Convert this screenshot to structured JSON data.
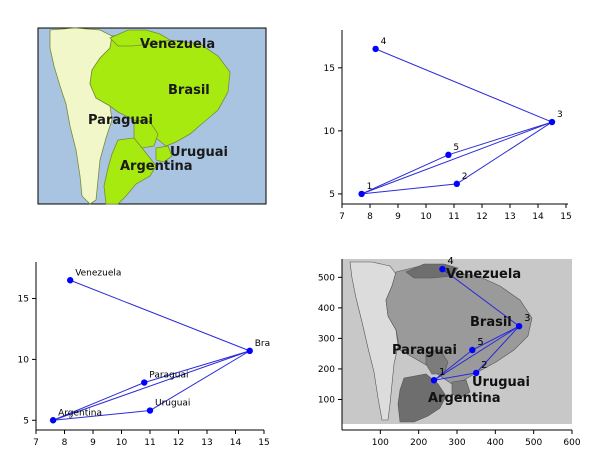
{
  "panels": {
    "map_top_left": {
      "labels": [
        "Venezuela",
        "Brasil",
        "Paraguai",
        "Uruguai",
        "Argentina"
      ],
      "colors": {
        "ocean": "#a9c4e0",
        "highlight": "#a6ea10",
        "other_land": "#f2f7c9",
        "border": "#7a8a3a"
      }
    },
    "graph_numbered": {
      "point_labels": [
        "1",
        "2",
        "3",
        "4",
        "5"
      ]
    },
    "graph_named": {
      "point_labels": [
        "Argentina",
        "Uruguai",
        "Bra",
        "Venezuela",
        "Paraguai"
      ]
    },
    "map_graph_gray": {
      "country_labels": [
        "Venezuela",
        "Brasil",
        "Paraguai",
        "Uruguai",
        "Argentina"
      ],
      "point_labels": [
        "1",
        "2",
        "3",
        "4",
        "5"
      ],
      "colors": {
        "ocean": "#c8c8c8",
        "south_america": "#9a9a9a",
        "highlight_land": "#6e6e6e",
        "light_land": "#dcdcdc"
      }
    }
  },
  "chart_data": [
    {
      "type": "scatter",
      "panel": "top-right",
      "x": [
        7.7,
        11.1,
        14.5,
        8.2,
        10.8
      ],
      "y": [
        5.0,
        5.8,
        10.7,
        16.5,
        8.1
      ],
      "labels": [
        "1",
        "2",
        "3",
        "4",
        "5"
      ],
      "edges": [
        [
          4,
          3
        ],
        [
          1,
          3
        ],
        [
          1,
          5
        ],
        [
          5,
          3
        ],
        [
          1,
          2
        ],
        [
          2,
          3
        ]
      ],
      "xlim": [
        7,
        15
      ],
      "ylim": [
        4.2,
        18
      ],
      "xticks": [
        7,
        8,
        9,
        10,
        11,
        12,
        13,
        14,
        15
      ],
      "yticks": [
        5,
        10,
        15
      ],
      "grid": false,
      "point_color": "#0000ff",
      "line_color": "#2b2bd9"
    },
    {
      "type": "scatter",
      "panel": "bottom-left",
      "x": [
        7.6,
        11.0,
        14.5,
        8.2,
        10.8
      ],
      "y": [
        5.0,
        5.8,
        10.7,
        16.5,
        8.1
      ],
      "labels": [
        "Argentina",
        "Uruguai",
        "Bra",
        "Venezuela",
        "Paraguai"
      ],
      "edges": [
        [
          4,
          3
        ],
        [
          1,
          3
        ],
        [
          1,
          5
        ],
        [
          5,
          3
        ],
        [
          1,
          2
        ],
        [
          2,
          3
        ]
      ],
      "xlim": [
        7,
        15
      ],
      "ylim": [
        4.2,
        18
      ],
      "xticks": [
        7,
        8,
        9,
        10,
        11,
        12,
        13,
        14,
        15
      ],
      "yticks": [
        5,
        10,
        15
      ],
      "grid": false,
      "point_color": "#0000ff",
      "line_color": "#2b2bd9"
    },
    {
      "type": "scatter",
      "panel": "bottom-right",
      "x": [
        240,
        350,
        462,
        262,
        340
      ],
      "y": [
        163,
        187,
        340,
        527,
        262
      ],
      "labels": [
        "1",
        "2",
        "3",
        "4",
        "5"
      ],
      "edges": [
        [
          4,
          3
        ],
        [
          1,
          3
        ],
        [
          1,
          5
        ],
        [
          5,
          3
        ],
        [
          1,
          2
        ],
        [
          2,
          3
        ]
      ],
      "xlim": [
        0,
        600
      ],
      "ylim": [
        0,
        560
      ],
      "xticks": [
        100,
        200,
        300,
        400,
        500,
        600
      ],
      "yticks": [
        100,
        200,
        300,
        400,
        500
      ],
      "grid": false,
      "point_color": "#0000ff",
      "line_color": "#2b2bd9"
    }
  ]
}
